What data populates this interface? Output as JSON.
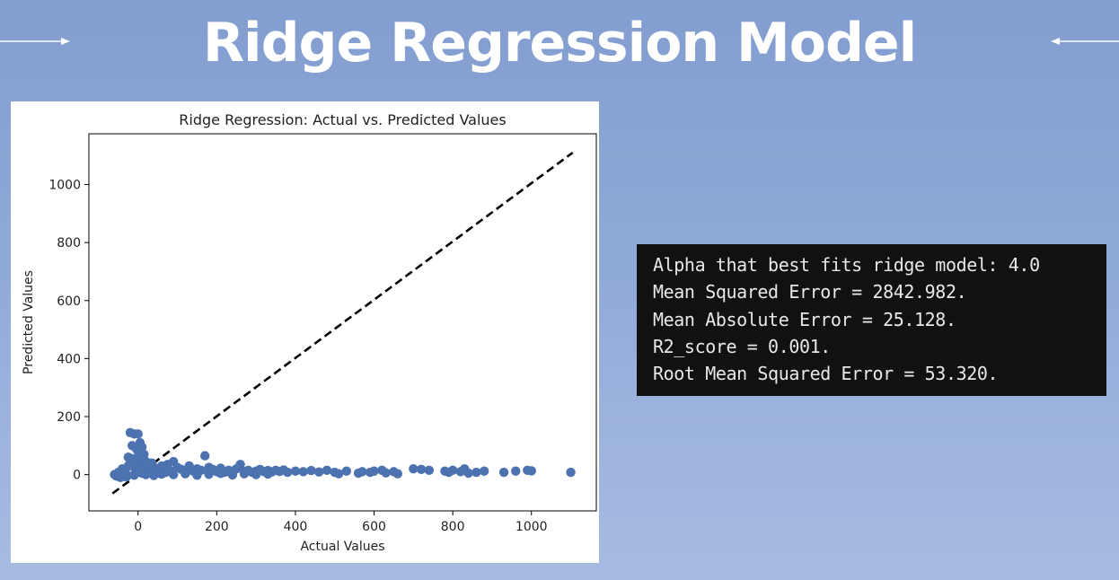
{
  "slide": {
    "title": "Ridge Regression Model"
  },
  "colors": {
    "background_top": "#829dcf",
    "background_bottom": "#a8bce2",
    "marker": "#4c72b0",
    "code_background": "#111111"
  },
  "icons": [
    "arrow-right-icon",
    "arrow-left-icon"
  ],
  "chart_data": {
    "type": "scatter",
    "title": "Ridge Regression: Actual vs. Predicted Values",
    "xlabel": "Actual Values",
    "ylabel": "Predicted Values",
    "xlim": [
      -125,
      1165
    ],
    "ylim": [
      -125,
      1175
    ],
    "xticks": [
      0,
      200,
      400,
      600,
      800,
      1000
    ],
    "yticks": [
      0,
      200,
      400,
      600,
      800,
      1000
    ],
    "grid": false,
    "reference_line": {
      "style": "dashed",
      "color": "#000000",
      "from": [
        -65,
        -65
      ],
      "to": [
        1105,
        1110
      ]
    },
    "points": [
      [
        -60,
        0
      ],
      [
        -55,
        -5
      ],
      [
        -50,
        8
      ],
      [
        -45,
        -10
      ],
      [
        -40,
        20
      ],
      [
        -35,
        10
      ],
      [
        -30,
        -8
      ],
      [
        -25,
        30
      ],
      [
        -20,
        40
      ],
      [
        -15,
        55
      ],
      [
        -10,
        25
      ],
      [
        -5,
        5
      ],
      [
        0,
        12
      ],
      [
        5,
        35
      ],
      [
        10,
        60
      ],
      [
        15,
        20
      ],
      [
        -20,
        145
      ],
      [
        -10,
        140
      ],
      [
        0,
        140
      ],
      [
        5,
        110
      ],
      [
        -15,
        100
      ],
      [
        -5,
        90
      ],
      [
        10,
        95
      ],
      [
        0,
        80
      ],
      [
        -25,
        60
      ],
      [
        -5,
        55
      ],
      [
        15,
        70
      ],
      [
        20,
        45
      ],
      [
        25,
        30
      ],
      [
        30,
        15
      ],
      [
        35,
        40
      ],
      [
        40,
        25
      ],
      [
        45,
        10
      ],
      [
        50,
        5
      ],
      [
        55,
        20
      ],
      [
        60,
        30
      ],
      [
        65,
        12
      ],
      [
        70,
        8
      ],
      [
        75,
        35
      ],
      [
        80,
        15
      ],
      [
        90,
        45
      ],
      [
        100,
        25
      ],
      [
        110,
        18
      ],
      [
        120,
        10
      ],
      [
        130,
        30
      ],
      [
        140,
        12
      ],
      [
        150,
        20
      ],
      [
        160,
        15
      ],
      [
        170,
        65
      ],
      [
        180,
        25
      ],
      [
        190,
        18
      ],
      [
        200,
        10
      ],
      [
        210,
        22
      ],
      [
        220,
        8
      ],
      [
        230,
        15
      ],
      [
        240,
        12
      ],
      [
        250,
        20
      ],
      [
        260,
        35
      ],
      [
        270,
        10
      ],
      [
        280,
        15
      ],
      [
        290,
        8
      ],
      [
        300,
        12
      ],
      [
        310,
        18
      ],
      [
        320,
        10
      ],
      [
        330,
        14
      ],
      [
        340,
        9
      ],
      [
        350,
        15
      ],
      [
        360,
        11
      ],
      [
        370,
        16
      ],
      [
        380,
        8
      ],
      [
        400,
        12
      ],
      [
        420,
        10
      ],
      [
        440,
        14
      ],
      [
        460,
        9
      ],
      [
        480,
        15
      ],
      [
        500,
        8
      ],
      [
        510,
        3
      ],
      [
        530,
        12
      ],
      [
        560,
        5
      ],
      [
        570,
        10
      ],
      [
        590,
        8
      ],
      [
        600,
        12
      ],
      [
        620,
        15
      ],
      [
        630,
        6
      ],
      [
        650,
        10
      ],
      [
        660,
        3
      ],
      [
        700,
        20
      ],
      [
        720,
        18
      ],
      [
        740,
        15
      ],
      [
        780,
        12
      ],
      [
        790,
        8
      ],
      [
        800,
        15
      ],
      [
        820,
        10
      ],
      [
        830,
        20
      ],
      [
        840,
        5
      ],
      [
        860,
        8
      ],
      [
        880,
        12
      ],
      [
        930,
        8
      ],
      [
        960,
        12
      ],
      [
        990,
        15
      ],
      [
        1000,
        13
      ],
      [
        1100,
        8
      ],
      [
        -50,
        3
      ],
      [
        -30,
        2
      ],
      [
        -10,
        -2
      ],
      [
        10,
        5
      ],
      [
        20,
        0
      ],
      [
        40,
        -3
      ],
      [
        60,
        2
      ],
      [
        90,
        0
      ],
      [
        120,
        3
      ],
      [
        150,
        -2
      ],
      [
        180,
        1
      ],
      [
        210,
        4
      ],
      [
        240,
        -1
      ],
      [
        270,
        3
      ],
      [
        300,
        0
      ],
      [
        330,
        2
      ]
    ]
  },
  "code_output": {
    "lines": [
      "Alpha that best fits ridge model: 4.0",
      "Mean Squared Error = 2842.982.",
      "Mean Absolute Error = 25.128.",
      "R2_score = 0.001.",
      "Root Mean Squared Error = 53.320."
    ]
  }
}
